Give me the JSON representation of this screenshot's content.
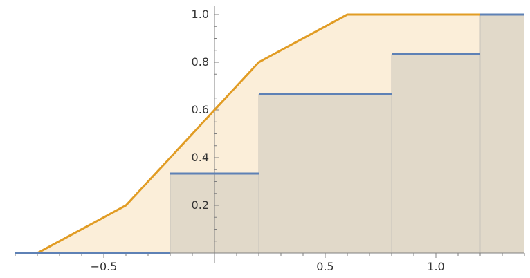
{
  "chart_data": {
    "type": "line",
    "title": "",
    "xlabel": "",
    "ylabel": "",
    "xlim": [
      -0.9,
      1.4
    ],
    "ylim": [
      0,
      1.0
    ],
    "x_ticks": [
      {
        "value": -0.5,
        "label": "−0.5"
      },
      {
        "value": 0.5,
        "label": "0.5"
      },
      {
        "value": 1.0,
        "label": "1.0"
      }
    ],
    "y_ticks": [
      {
        "value": 0.2,
        "label": "0.2"
      },
      {
        "value": 0.4,
        "label": "0.4"
      },
      {
        "value": 0.6,
        "label": "0.6"
      },
      {
        "value": 0.8,
        "label": "0.8"
      },
      {
        "value": 1.0,
        "label": "1.0"
      }
    ],
    "grid": false,
    "legend": "none",
    "series": [
      {
        "style": "step",
        "color": "#5e81b5",
        "fill_color": "#dcd5c6",
        "points": [
          {
            "x": -0.9,
            "y": 0
          },
          {
            "x": -0.2,
            "y": 0
          },
          {
            "x": -0.2,
            "y": 0.3333
          },
          {
            "x": 0.2,
            "y": 0.3333
          },
          {
            "x": 0.2,
            "y": 0.6667
          },
          {
            "x": 0.8,
            "y": 0.6667
          },
          {
            "x": 0.8,
            "y": 0.8333
          },
          {
            "x": 1.2,
            "y": 0.8333
          },
          {
            "x": 1.2,
            "y": 1.0
          },
          {
            "x": 1.4,
            "y": 1.0
          }
        ]
      },
      {
        "style": "line",
        "color": "#e19c24",
        "fill_color": "#fbeed9",
        "points": [
          {
            "x": -0.9,
            "y": 0
          },
          {
            "x": -0.8,
            "y": 0
          },
          {
            "x": -0.4,
            "y": 0.2
          },
          {
            "x": 0.2,
            "y": 0.8
          },
          {
            "x": 0.6,
            "y": 1.0
          },
          {
            "x": 1.4,
            "y": 1.0
          }
        ]
      }
    ]
  }
}
